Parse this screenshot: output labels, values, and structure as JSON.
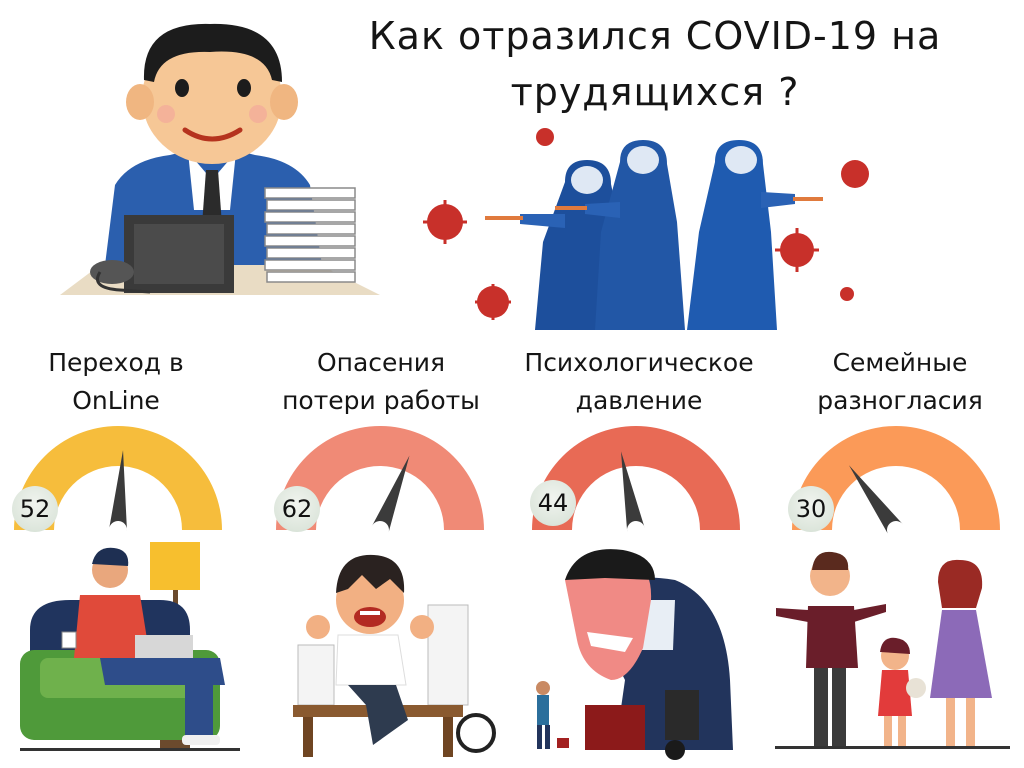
{
  "title": "Как отразился COVID-19 на трудящихся ?",
  "colors": {
    "yellow": "#f6bd3c",
    "salmon": "#f08a76",
    "red": "#e86a55",
    "orange": "#fb9a58",
    "needle": "#3b3b3b"
  },
  "gauges": [
    {
      "label_line1": "Переход в",
      "label_line2": "OnLine",
      "value": 52,
      "color": "#f6bd3c"
    },
    {
      "label_line1": "Опасения",
      "label_line2": "потери работы",
      "value": 62,
      "color": "#f08a76"
    },
    {
      "label_line1": "Психологическое",
      "label_line2": "давление",
      "value": 44,
      "color": "#e86a55"
    },
    {
      "label_line1": "Семейные",
      "label_line2": "разногласия",
      "value": 30,
      "color": "#fb9a58"
    }
  ],
  "icons": [
    "office-worker-illustration",
    "virus-doctors-illustration",
    "home-work-illustration",
    "angry-worker-illustration",
    "stressed-boss-illustration",
    "family-argument-illustration"
  ]
}
